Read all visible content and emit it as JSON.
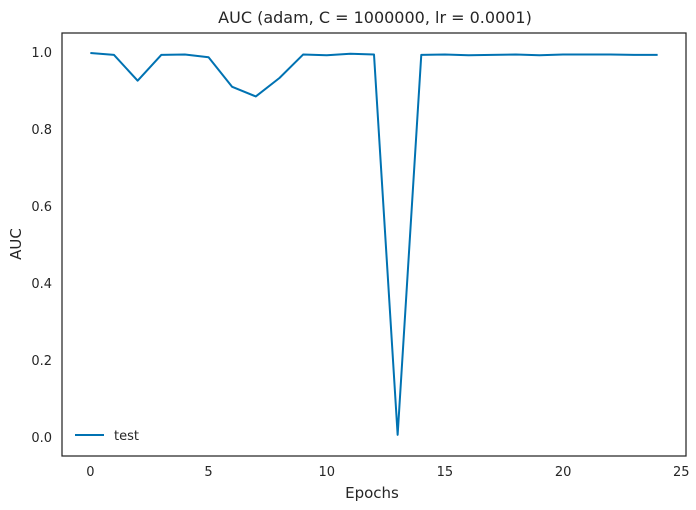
{
  "chart_data": {
    "type": "line",
    "title": "AUC (adam, C = 1000000, lr = 0.0001)",
    "xlabel": "Epochs",
    "ylabel": "AUC",
    "xlim": [
      -1.2,
      25.2
    ],
    "ylim": [
      -0.05,
      1.05
    ],
    "xticks": [
      0,
      5,
      10,
      15,
      20,
      25
    ],
    "yticks": [
      0.0,
      0.2,
      0.4,
      0.6,
      0.8,
      1.0
    ],
    "xtick_labels": [
      "0",
      "5",
      "10",
      "15",
      "20",
      "25"
    ],
    "ytick_labels": [
      "0.0",
      "0.2",
      "0.4",
      "0.6",
      "0.8",
      "1.0"
    ],
    "grid": false,
    "legend_position": "lower-left",
    "series": [
      {
        "name": "test",
        "color": "#0072b2",
        "x": [
          0,
          1,
          2,
          3,
          4,
          5,
          6,
          7,
          8,
          9,
          10,
          11,
          12,
          13,
          14,
          15,
          16,
          17,
          18,
          19,
          20,
          21,
          22,
          23,
          24
        ],
        "y": [
          0.998,
          0.993,
          0.926,
          0.993,
          0.994,
          0.987,
          0.91,
          0.885,
          0.933,
          0.994,
          0.992,
          0.996,
          0.994,
          0.005,
          0.993,
          0.994,
          0.992,
          0.993,
          0.994,
          0.992,
          0.994,
          0.994,
          0.994,
          0.993,
          0.993
        ]
      }
    ]
  }
}
